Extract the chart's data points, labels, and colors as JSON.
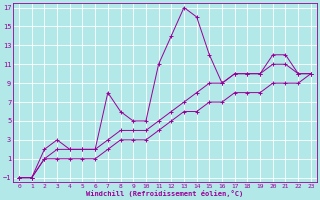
{
  "xlabel": "Windchill (Refroidissement éolien,°C)",
  "bg_color": "#b2e8e8",
  "line_color": "#990099",
  "grid_color": "#aaaaaa",
  "xlim": [
    -0.5,
    23.5
  ],
  "ylim": [
    -1.5,
    17.5
  ],
  "xticks": [
    0,
    1,
    2,
    3,
    4,
    5,
    6,
    7,
    8,
    9,
    10,
    11,
    12,
    13,
    14,
    15,
    16,
    17,
    18,
    19,
    20,
    21,
    22,
    23
  ],
  "yticks": [
    -1,
    1,
    3,
    5,
    7,
    9,
    11,
    13,
    15,
    17
  ],
  "line1_x": [
    0,
    1,
    2,
    3,
    4,
    5,
    6,
    7,
    8,
    9,
    10,
    11,
    12,
    13,
    14,
    15,
    16,
    17,
    18,
    19,
    20,
    21,
    22,
    23
  ],
  "line1_y": [
    -1,
    -1,
    2,
    3,
    2,
    2,
    2,
    8,
    6,
    5,
    5,
    11,
    14,
    17,
    16,
    12,
    9,
    10,
    10,
    10,
    12,
    12,
    10,
    10
  ],
  "line2_x": [
    0,
    1,
    2,
    3,
    4,
    5,
    6,
    7,
    8,
    9,
    10,
    11,
    12,
    13,
    14,
    15,
    16,
    17,
    18,
    19,
    20,
    21,
    22,
    23
  ],
  "line2_y": [
    -1,
    -1,
    1,
    2,
    2,
    2,
    2,
    3,
    4,
    4,
    4,
    5,
    6,
    7,
    8,
    9,
    9,
    10,
    10,
    10,
    11,
    11,
    10,
    10
  ],
  "line3_x": [
    0,
    1,
    2,
    3,
    4,
    5,
    6,
    7,
    8,
    9,
    10,
    11,
    12,
    13,
    14,
    15,
    16,
    17,
    18,
    19,
    20,
    21,
    22,
    23
  ],
  "line3_y": [
    -1,
    -1,
    1,
    1,
    1,
    1,
    1,
    2,
    3,
    3,
    3,
    4,
    5,
    6,
    6,
    7,
    7,
    8,
    8,
    8,
    9,
    9,
    9,
    10
  ]
}
